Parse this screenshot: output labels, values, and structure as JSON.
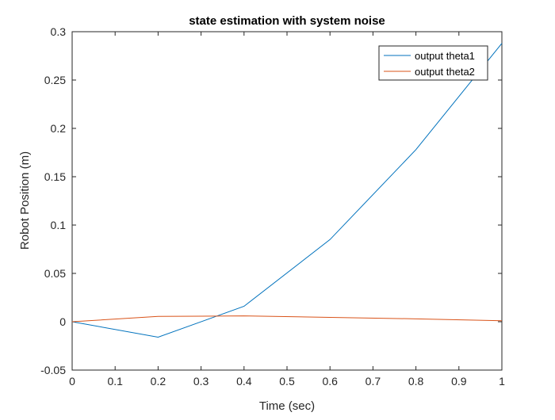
{
  "chart_data": {
    "type": "line",
    "title": "state estimation with system noise",
    "xlabel": "Time (sec)",
    "ylabel": "Robot Position (m)",
    "xlim": [
      0,
      1
    ],
    "ylim": [
      -0.05,
      0.3
    ],
    "xticks": [
      0,
      0.1,
      0.2,
      0.3,
      0.4,
      0.5,
      0.6,
      0.7,
      0.8,
      0.9,
      1
    ],
    "xtick_labels": [
      "0",
      "0.1",
      "0.2",
      "0.3",
      "0.4",
      "0.5",
      "0.6",
      "0.7",
      "0.8",
      "0.9",
      "1"
    ],
    "yticks": [
      -0.05,
      0,
      0.05,
      0.1,
      0.15,
      0.2,
      0.25,
      0.3
    ],
    "ytick_labels": [
      "-0.05",
      "0",
      "0.05",
      "0.1",
      "0.15",
      "0.2",
      "0.25",
      "0.3"
    ],
    "grid": false,
    "legend_position": "top-right",
    "series": [
      {
        "name": "output theta1",
        "color": "#0072BD",
        "x": [
          0,
          0.2,
          0.4,
          0.6,
          0.8,
          1.0
        ],
        "y": [
          0,
          -0.016,
          0.016,
          0.085,
          0.178,
          0.288
        ]
      },
      {
        "name": "output theta2",
        "color": "#D95319",
        "x": [
          0,
          0.2,
          0.4,
          0.6,
          0.8,
          1.0
        ],
        "y": [
          0,
          0.0055,
          0.006,
          0.0045,
          0.003,
          0.001
        ]
      }
    ]
  }
}
